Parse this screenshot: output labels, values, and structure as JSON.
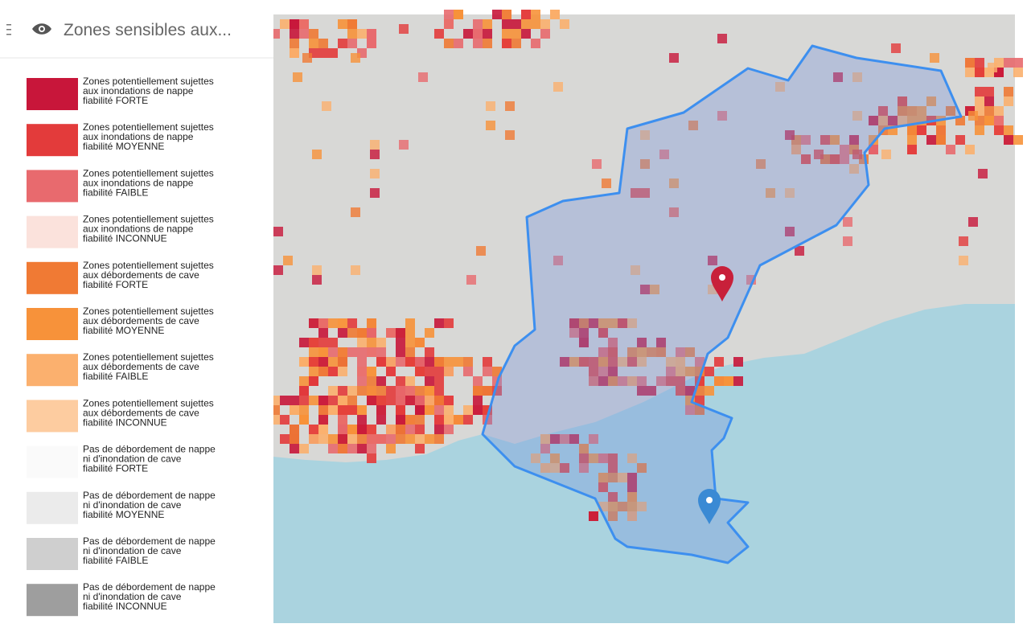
{
  "header": {
    "title": "Zones sensibles aux..."
  },
  "legend": {
    "items": [
      {
        "color": "#c8163a",
        "lines": [
          "Zones potentiellement sujettes",
          "aux inondations de nappe",
          "fiabilité FORTE"
        ]
      },
      {
        "color": "#e33b3b",
        "lines": [
          "Zones potentiellement sujettes",
          "aux inondations de nappe",
          "fiabilité MOYENNE"
        ]
      },
      {
        "color": "#e86a6e",
        "lines": [
          "Zones potentiellement sujettes",
          "aux inondations de nappe",
          "fiabilité FAIBLE"
        ]
      },
      {
        "color": "#fbe2dc",
        "lines": [
          "Zones potentiellement sujettes",
          "aux inondations de nappe",
          "fiabilité INCONNUE"
        ]
      },
      {
        "color": "#f07a34",
        "lines": [
          "Zones potentiellement sujettes",
          "aux débordements de cave",
          "fiabilité FORTE"
        ]
      },
      {
        "color": "#f7923a",
        "lines": [
          "Zones potentiellement sujettes",
          "aux débordements de cave",
          "fiabilité MOYENNE"
        ]
      },
      {
        "color": "#fbb06e",
        "lines": [
          "Zones potentiellement sujettes",
          "aux débordements de cave",
          "fiabilité FAIBLE"
        ]
      },
      {
        "color": "#fdcca0",
        "lines": [
          "Zones potentiellement sujettes",
          "aux débordements de cave",
          "fiabilité INCONNUE"
        ]
      },
      {
        "color": "#fafafa",
        "lines": [
          "Pas de débordement de nappe",
          "ni d'inondation de cave",
          "fiabilité FORTE"
        ]
      },
      {
        "color": "#ebebeb",
        "lines": [
          "Pas de débordement de nappe",
          "ni d'inondation de cave",
          "fiabilité MOYENNE"
        ]
      },
      {
        "color": "#cfcfcf",
        "lines": [
          "Pas de débordement de nappe",
          "ni d'inondation de cave",
          "fiabilité FAIBLE"
        ]
      },
      {
        "color": "#9e9e9e",
        "lines": [
          "Pas de débordement de nappe",
          "ni d'inondation de cave",
          "fiabilité INCONNUE"
        ]
      }
    ]
  }
}
